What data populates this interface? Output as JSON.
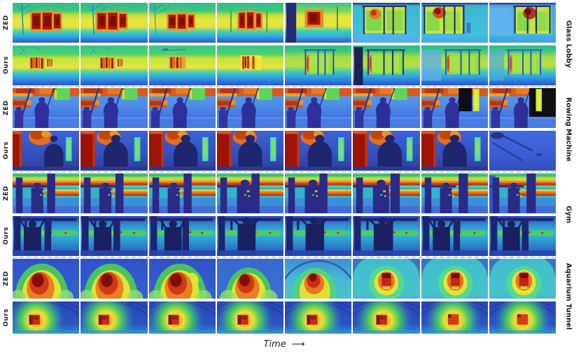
{
  "figure": {
    "type": "qualitative-depth-comparison-grid",
    "columns": 8,
    "methods": [
      "ZED",
      "Ours"
    ],
    "caption": {
      "label": "Time",
      "arrow": "⟶"
    },
    "scenes": [
      {
        "name": "Glass Lobby",
        "rows": [
          {
            "method": "ZED",
            "painter": "lobbyZed"
          },
          {
            "method": "Ours",
            "painter": "lobbyOurs"
          }
        ]
      },
      {
        "name": "Rowing Machine",
        "rows": [
          {
            "method": "ZED",
            "painter": "rowZed"
          },
          {
            "method": "Ours",
            "painter": "rowOurs"
          }
        ]
      },
      {
        "name": "Gym",
        "rows": [
          {
            "method": "ZED",
            "painter": "gymZed"
          },
          {
            "method": "Ours",
            "painter": "gymOurs"
          }
        ]
      },
      {
        "name": "Aquarium Tunnel",
        "rows": [
          {
            "method": "ZED",
            "painter": "tunZed"
          },
          {
            "method": "Ours",
            "painter": "tunOurs"
          }
        ]
      }
    ],
    "colormap": [
      "#00008f",
      "#0020ff",
      "#00a0ff",
      "#20ffd0",
      "#60ff60",
      "#ffe000",
      "#ff6000",
      "#c00000",
      "#800000"
    ]
  }
}
